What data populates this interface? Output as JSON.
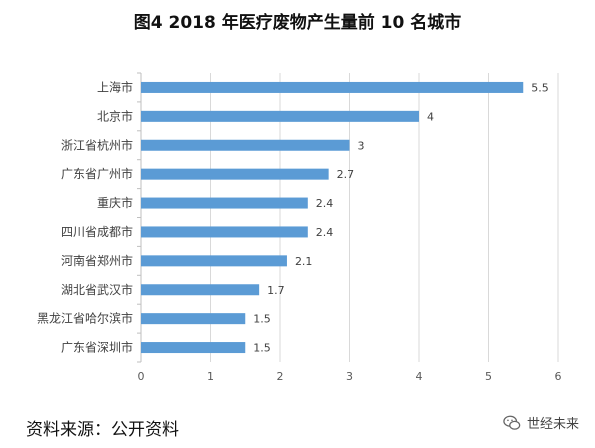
{
  "title": "图4 2018 年医疗废物产生量前 10 名城市",
  "source": "资料来源：公开资料",
  "watermark": {
    "text": "世经未来",
    "icon": "wechat-icon"
  },
  "chart_data": {
    "type": "bar",
    "orientation": "horizontal",
    "title": "图4 2018 年医疗废物产生量前 10 名城市",
    "categories": [
      "上海市",
      "北京市",
      "浙江省杭州市",
      "广东省广州市",
      "重庆市",
      "四川省成都市",
      "河南省郑州市",
      "湖北省武汉市",
      "黑龙江省哈尔滨市",
      "广东省深圳市"
    ],
    "values": [
      5.5,
      4,
      3,
      2.7,
      2.4,
      2.4,
      2.1,
      1.7,
      1.5,
      1.5
    ],
    "value_labels": [
      "5.5",
      "4",
      "3",
      "2.7",
      "2.4",
      "2.4",
      "2.1",
      "1.7",
      "1.5",
      "1.5"
    ],
    "xlim": [
      0,
      6
    ],
    "xticks": [
      "0",
      "1",
      "2",
      "3",
      "4",
      "5",
      "6"
    ],
    "grid": true,
    "bar_color": "#5b9bd5"
  }
}
